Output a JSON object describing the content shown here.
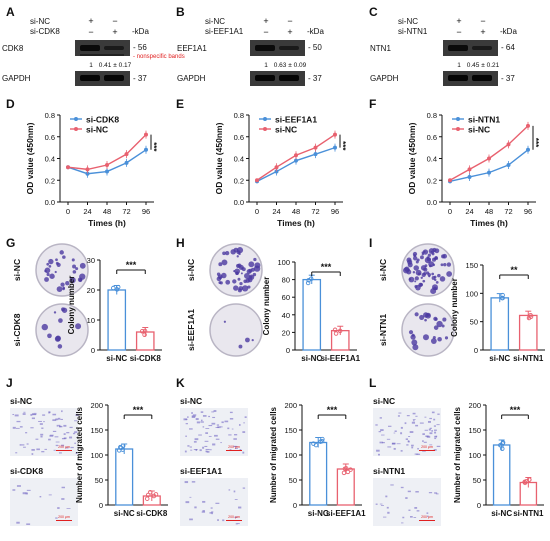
{
  "colors": {
    "si_ctrl": "#4a90d9",
    "si_nc": "#e8616f",
    "nonspecific": "#e02020",
    "dish_purple": "#4b3aa0"
  },
  "western": [
    {
      "letter": "A",
      "row1": "si-NC",
      "row2": "si-CDK8",
      "kda": "-kDa",
      "target": "CDK8",
      "target_kda": "- 56",
      "note": "- nonspecific bands",
      "ratio1": "1",
      "ratio2": "0.41 ± 0.17",
      "loading": "GAPDH",
      "loading_kda": "- 37"
    },
    {
      "letter": "B",
      "row1": "si-NC",
      "row2": "si-EEF1A1",
      "kda": "-kDa",
      "target": "EEF1A1",
      "target_kda": "- 50",
      "ratio1": "1",
      "ratio2": "0.63 ± 0.09",
      "loading": "GAPDH",
      "loading_kda": "- 37"
    },
    {
      "letter": "C",
      "row1": "si-NC",
      "row2": "si-NTN1",
      "kda": "-kDa",
      "target": "NTN1",
      "target_kda": "- 64",
      "ratio1": "1",
      "ratio2": "0.45 ± 0.21",
      "loading": "GAPDH",
      "loading_kda": "- 37"
    }
  ],
  "signs": {
    "plus": "+",
    "minus": "−"
  },
  "chart_data": [
    {
      "panel": "D",
      "type": "line",
      "x": [
        0,
        24,
        48,
        72,
        96
      ],
      "xlabel": "Times (h)",
      "ylabel": "OD value (450nm)",
      "ylim": [
        0.0,
        0.8
      ],
      "yticks": [
        "0.0",
        "0.2",
        "0.4",
        "0.6",
        "0.8"
      ],
      "xticks": [
        "0",
        "24",
        "48",
        "72",
        "96"
      ],
      "sig": "***",
      "series": [
        {
          "name": "si-CDK8",
          "values": [
            0.32,
            0.26,
            0.28,
            0.36,
            0.48
          ]
        },
        {
          "name": "si-NC",
          "values": [
            0.32,
            0.3,
            0.34,
            0.44,
            0.62
          ]
        }
      ]
    },
    {
      "panel": "E",
      "type": "line",
      "x": [
        0,
        24,
        48,
        72,
        96
      ],
      "xlabel": "Times (h)",
      "ylabel": "OD value (450nm)",
      "ylim": [
        0.0,
        0.8
      ],
      "yticks": [
        "0.0",
        "0.2",
        "0.4",
        "0.6",
        "0.8"
      ],
      "xticks": [
        "0",
        "24",
        "48",
        "72",
        "96"
      ],
      "sig": "***",
      "series": [
        {
          "name": "si-EEF1A1",
          "values": [
            0.19,
            0.28,
            0.38,
            0.44,
            0.5
          ]
        },
        {
          "name": "si-NC",
          "values": [
            0.2,
            0.32,
            0.43,
            0.5,
            0.62
          ]
        }
      ]
    },
    {
      "panel": "F",
      "type": "line",
      "x": [
        0,
        24,
        48,
        72,
        96
      ],
      "xlabel": "Times (h)",
      "ylabel": "OD value (450nm)",
      "ylim": [
        0.0,
        0.8
      ],
      "yticks": [
        "0.0",
        "0.2",
        "0.4",
        "0.6",
        "0.8"
      ],
      "xticks": [
        "0",
        "24",
        "48",
        "72",
        "96"
      ],
      "sig": "***",
      "series": [
        {
          "name": "si-NTN1",
          "values": [
            0.19,
            0.23,
            0.27,
            0.34,
            0.48
          ]
        },
        {
          "name": "si-NC",
          "values": [
            0.2,
            0.3,
            0.4,
            0.53,
            0.7
          ]
        }
      ]
    },
    {
      "panel": "G",
      "type": "bar",
      "categories": [
        "si-NC",
        "si-CDK8"
      ],
      "values": [
        20,
        6
      ],
      "ylabel": "Colony number",
      "ylim": [
        0,
        30
      ],
      "yticks": [
        "0",
        "10",
        "20",
        "30"
      ],
      "sig": "***"
    },
    {
      "panel": "H",
      "type": "bar",
      "categories": [
        "si-NC",
        "si-EEF1A1"
      ],
      "values": [
        80,
        22
      ],
      "ylabel": "Colony number",
      "ylim": [
        0,
        100
      ],
      "yticks": [
        "0",
        "20",
        "40",
        "60",
        "80",
        "100"
      ],
      "sig": "***"
    },
    {
      "panel": "I",
      "type": "bar",
      "categories": [
        "si-NC",
        "si-NTN1"
      ],
      "values": [
        92,
        61
      ],
      "ylabel": "Colony number",
      "ylim": [
        0,
        150
      ],
      "yticks": [
        "0",
        "50",
        "100",
        "150"
      ],
      "sig": "**"
    },
    {
      "panel": "J",
      "type": "bar",
      "categories": [
        "si-NC",
        "si-CDK8"
      ],
      "values": [
        112,
        18
      ],
      "ylabel": "Number of migrated cells",
      "ylim": [
        0,
        200
      ],
      "yticks": [
        "0",
        "50",
        "100",
        "150",
        "200"
      ],
      "sig": "***"
    },
    {
      "panel": "K",
      "type": "bar",
      "categories": [
        "si-NC",
        "si-EEF1A1"
      ],
      "values": [
        125,
        72
      ],
      "ylabel": "Number of migrated cells",
      "ylim": [
        0,
        200
      ],
      "yticks": [
        "0",
        "50",
        "100",
        "150",
        "200"
      ],
      "sig": "***"
    },
    {
      "panel": "L",
      "type": "bar",
      "categories": [
        "si-NC",
        "si-NTN1"
      ],
      "values": [
        120,
        45
      ],
      "ylabel": "Number of migrated cells",
      "ylim": [
        0,
        200
      ],
      "yticks": [
        "0",
        "50",
        "100",
        "150",
        "200"
      ],
      "sig": "***"
    }
  ],
  "dish_labels": [
    {
      "panel": "G",
      "top": "si-NC",
      "bottom": "si-CDK8"
    },
    {
      "panel": "H",
      "top": "si-NC",
      "bottom": "si-EEF1A1"
    },
    {
      "panel": "I",
      "top": "si-NC",
      "bottom": "si-NTN1"
    }
  ],
  "migration_labels": [
    {
      "panel": "J",
      "top": "si-NC",
      "bottom": "si-CDK8",
      "scale": "200 μm"
    },
    {
      "panel": "K",
      "top": "si-NC",
      "bottom": "si-EEF1A1",
      "scale": "200 μm"
    },
    {
      "panel": "L",
      "top": "si-NC",
      "bottom": "si-NTN1",
      "scale": "200 μm"
    }
  ]
}
